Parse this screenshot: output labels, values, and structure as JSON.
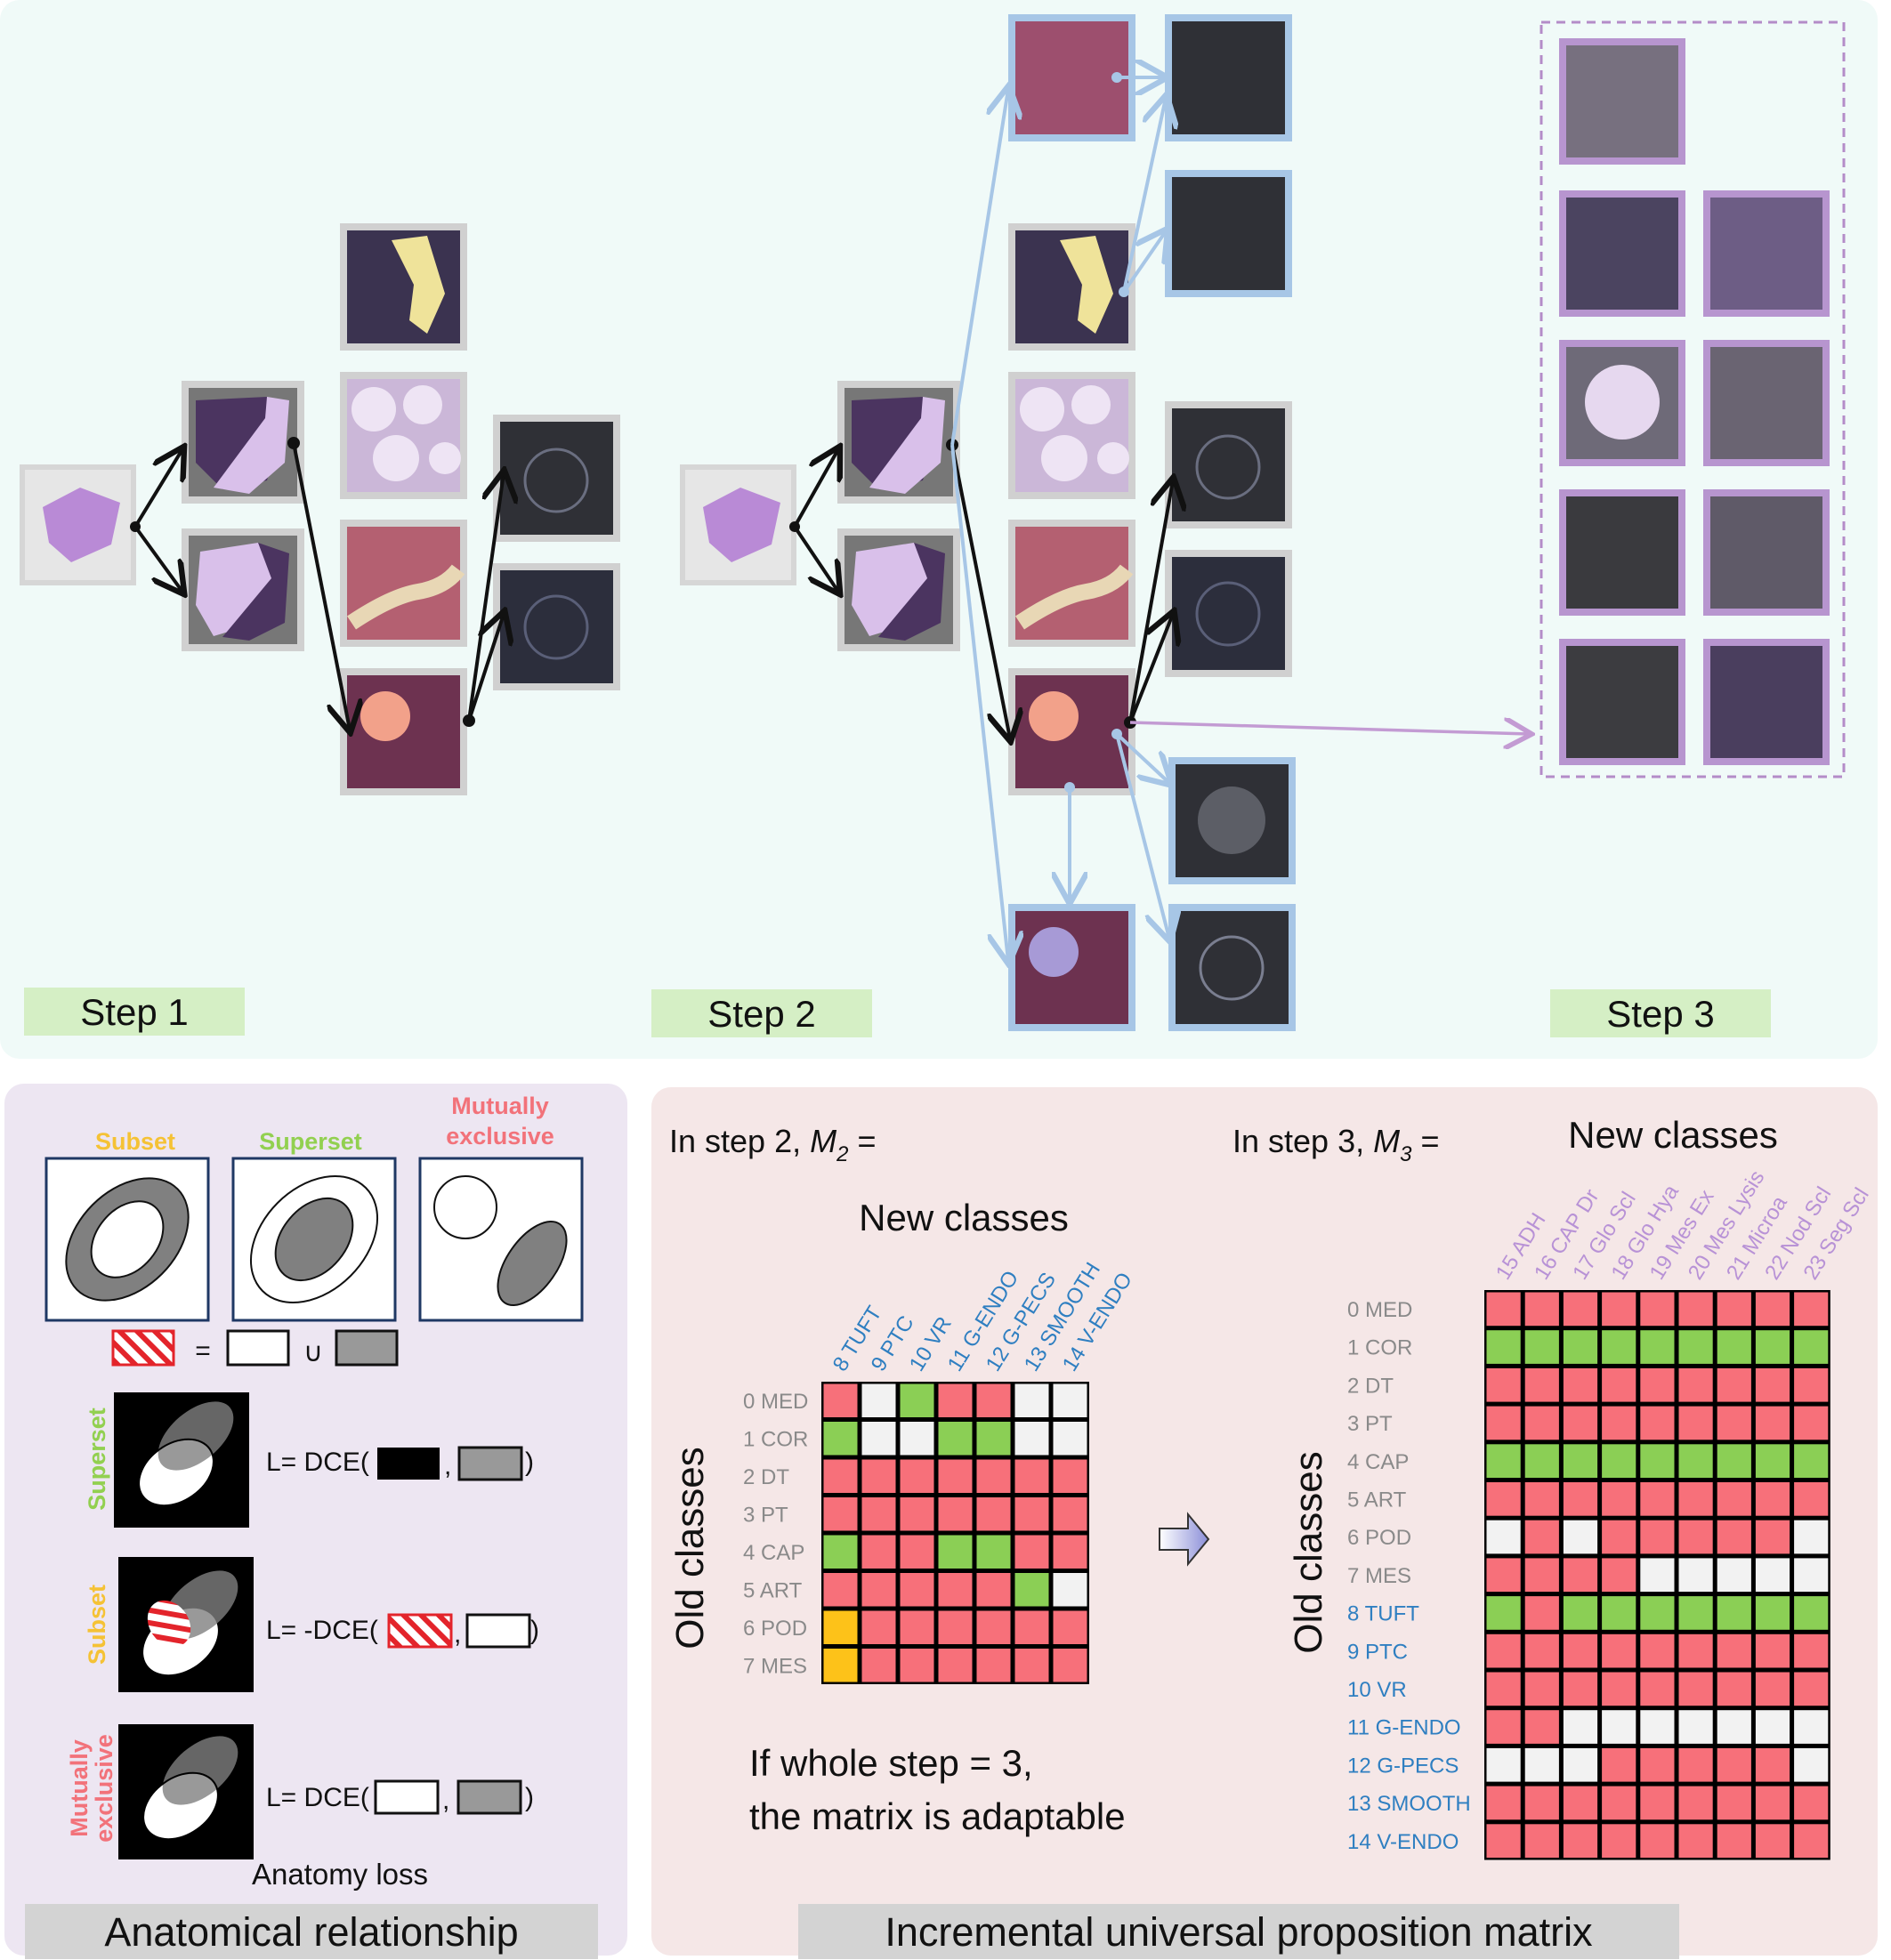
{
  "steps": {
    "step1": "Step 1",
    "step2": "Step 2",
    "step3": "Step 3"
  },
  "anatomical": {
    "subset": "Subset",
    "superset": "Superset",
    "mutually_exclusive_line1": "Mutually",
    "mutually_exclusive_line2": "exclusive",
    "equals": "=",
    "union": "∪",
    "superset_side": "Superset",
    "subset_side": "Subset",
    "mutual_side_line1": "Mutually",
    "mutual_side_line2": "exclusive",
    "loss_superset": "L= DCE(",
    "loss_subset": "L= -DCE(",
    "loss_mutual": "L= DCE(",
    "comma": ",",
    "close": ")",
    "anatomy_loss": "Anatomy loss",
    "title": "Anatomical relationship"
  },
  "matrix": {
    "step2_prefix": "In step 2, ",
    "step2_var": "M",
    "step2_sub": "2",
    "step2_suffix": " =",
    "step3_prefix": "In step 3, ",
    "step3_var": "M",
    "step3_sub": "3",
    "step3_suffix": " =",
    "new_classes_2": "New classes",
    "new_classes_3": "New classes",
    "old_classes_2": "Old classes",
    "old_classes_3": "Old classes",
    "adapt_line1": "If whole step = 3,",
    "adapt_line2": "the matrix is adaptable",
    "title": "Incremental universal proposition matrix",
    "m2_cols": [
      "8 TUFT",
      "9 PTC",
      "10 VR",
      "11 G-ENDO",
      "12 G-PECS",
      "13 SMOOTH",
      "14 V-ENDO"
    ],
    "m2_rows": [
      "0 MED",
      "1 COR",
      "2 DT",
      "3 PT",
      "4 CAP",
      "5 ART",
      "6 POD",
      "7 MES"
    ],
    "m2_cells": [
      "RWGRRWW",
      "GWWGGWW",
      "RRRRRRR",
      "RRRRRRR",
      "GRRGGRR",
      "RRRRRGW",
      "YRRRRRR",
      "YRRRRRR"
    ],
    "m3_cols": [
      "15 ADH",
      "16 CAP Dr",
      "17 Glo Scl",
      "18 Glo Hya",
      "19 Mes Ex",
      "20 Mes Lysis",
      "21 Microa",
      "22 Nod Scl",
      "23 Seg Scl"
    ],
    "m3_rows_old": [
      "0 MED",
      "1 COR",
      "2 DT",
      "3 PT",
      "4 CAP",
      "5 ART",
      "6 POD",
      "7 MES"
    ],
    "m3_rows_new": [
      "8 TUFT",
      "9 PTC",
      "10 VR",
      "11 G-ENDO",
      "12 G-PECS",
      "13 SMOOTH",
      "14 V-ENDO"
    ],
    "m3_cells": [
      "RRRRRRRRR",
      "GGGGGGGGG",
      "RRRRRRRRR",
      "RRRRRRRRR",
      "GGGGGGGGG",
      "RRRRRRRRR",
      "WRWRRRRRW",
      "RRRRWWWWW",
      "GRGGGGGGG",
      "RRRRRRRRR",
      "RRRRRRRRR",
      "RRWWWWWWW",
      "WWWRRRRRW",
      "RRRRRRRRR",
      "RRRRRRRRR"
    ]
  },
  "colors": {
    "red": "#f7707a",
    "green": "#8bcf55",
    "white": "#f2f2f2",
    "yellow": "#fdc219",
    "old_label": "#8a8a8a",
    "new_label_blue": "#2f7fc1",
    "new_label_purple": "#b892d6",
    "subset_color": "#f5c235",
    "superset_color": "#92d050",
    "mutual_color": "#f2727a",
    "step_label_bg": "#d5efc5",
    "blue_arrow": "#a7c6e6",
    "purple_arrow": "#c39bd3"
  }
}
